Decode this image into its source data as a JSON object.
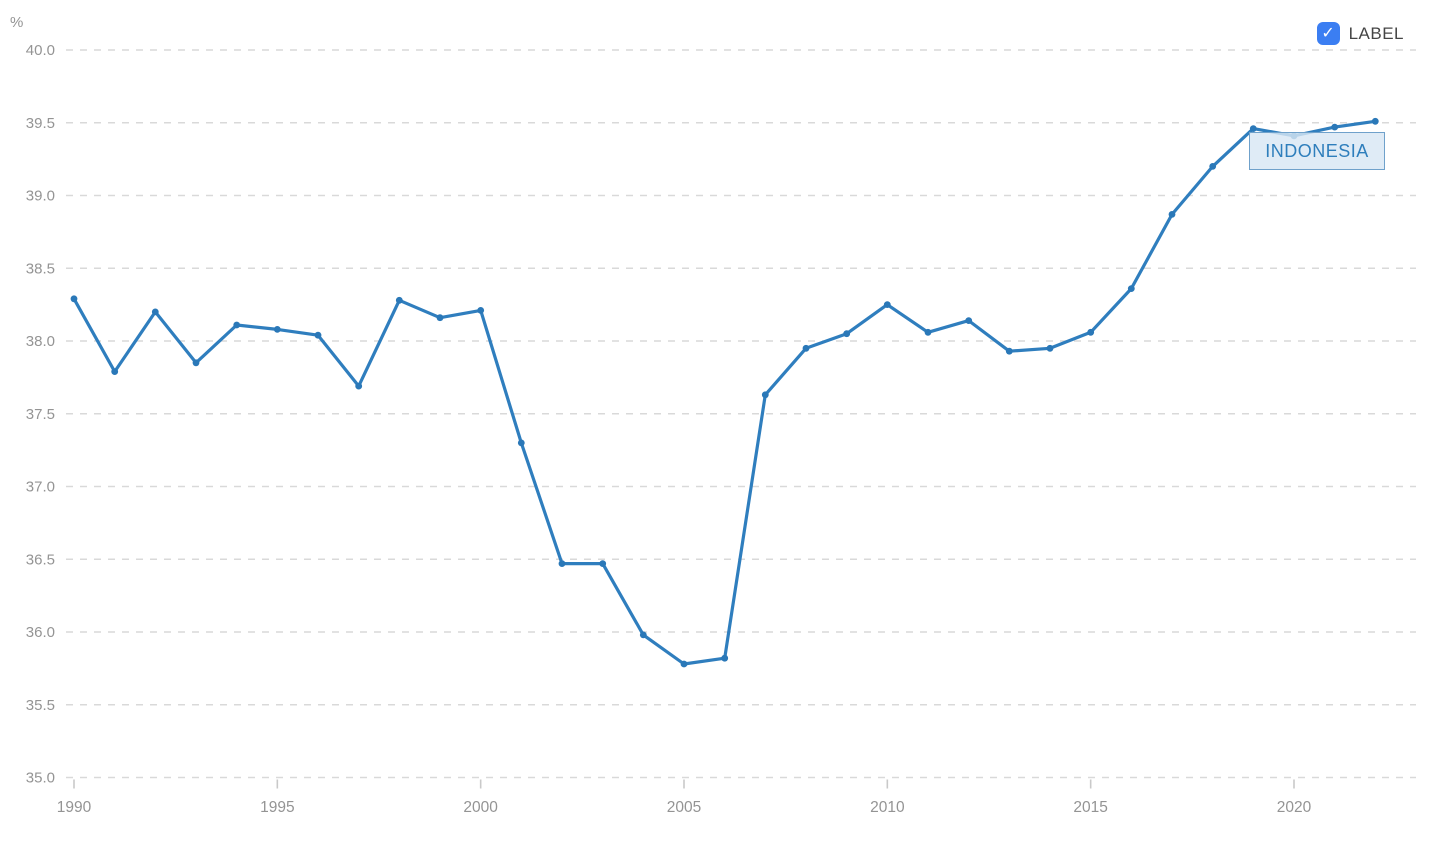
{
  "legend": {
    "label": "LABEL",
    "checkbox_checked": true,
    "check_glyph": "✓"
  },
  "series_label": "INDONESIA",
  "axis": {
    "y_unit": "%"
  },
  "colors": {
    "line": "#2f7ebe",
    "point": "#2a78b8",
    "grid": "#d9d9d9",
    "axis_text": "#949494",
    "tick_mark": "#c9c9c9",
    "checkbox_blue": "#3b7ef2",
    "label_text": "#2e7ebc",
    "label_border": "#6fa1cb",
    "label_bg": "#d8e6f4"
  },
  "chart_data": {
    "type": "line",
    "title": "",
    "xlabel": "",
    "ylabel": "%",
    "ylim": [
      35.0,
      40.0
    ],
    "xlim": [
      1990,
      2022
    ],
    "grid": "horizontal-dashed",
    "legend_position": "top-right",
    "y_ticks": [
      35.0,
      35.5,
      36.0,
      36.5,
      37.0,
      37.5,
      38.0,
      38.5,
      39.0,
      39.5,
      40.0
    ],
    "x_ticks": [
      1990,
      1995,
      2000,
      2005,
      2010,
      2015,
      2020
    ],
    "x": [
      1990,
      1991,
      1992,
      1993,
      1994,
      1995,
      1996,
      1997,
      1998,
      1999,
      2000,
      2001,
      2002,
      2003,
      2004,
      2005,
      2006,
      2007,
      2008,
      2009,
      2010,
      2011,
      2012,
      2013,
      2014,
      2015,
      2016,
      2017,
      2018,
      2019,
      2020,
      2021,
      2022
    ],
    "series": [
      {
        "name": "INDONESIA",
        "values": [
          38.29,
          37.79,
          38.2,
          37.85,
          38.11,
          38.08,
          38.04,
          37.69,
          38.28,
          38.16,
          38.21,
          37.3,
          36.47,
          36.47,
          35.98,
          35.78,
          35.82,
          37.63,
          37.95,
          38.05,
          38.25,
          38.06,
          38.14,
          37.93,
          37.95,
          38.06,
          38.36,
          38.87,
          39.2,
          39.46,
          39.41,
          39.47,
          39.51
        ]
      }
    ]
  }
}
